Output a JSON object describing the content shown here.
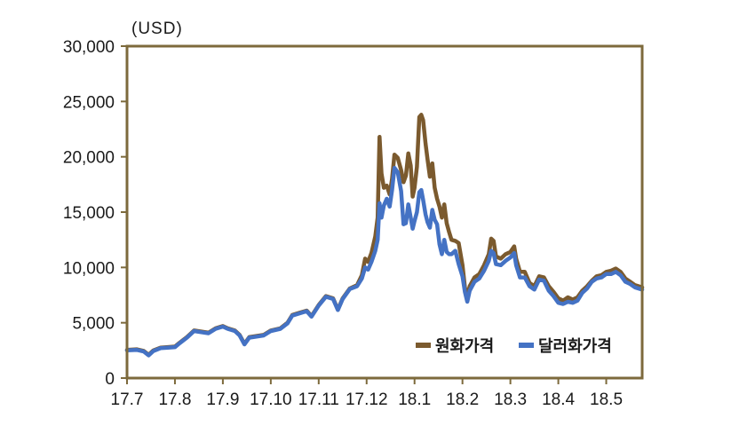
{
  "chart_data": {
    "type": "line",
    "unit_label": "(USD)",
    "ylim": [
      0,
      30000
    ],
    "y_ticks": [
      0,
      5000,
      10000,
      15000,
      20000,
      25000,
      30000
    ],
    "y_tick_labels": [
      "0",
      "5,000",
      "10,000",
      "15,000",
      "20,000",
      "25,000",
      "30,000"
    ],
    "x_tick_labels": [
      "17.7",
      "17.8",
      "17.9",
      "17.10",
      "17.11",
      "17.12",
      "18.1",
      "18.2",
      "18.3",
      "18.4",
      "18.5"
    ],
    "x_range_months": [
      0,
      10.75
    ],
    "grid": false,
    "legend_position": "bottom-right",
    "frame_color": "#7d6a3c",
    "series": [
      {
        "name": "원화가격",
        "color": "#7b5a2e",
        "points": [
          [
            0,
            2550
          ],
          [
            0.2,
            2600
          ],
          [
            0.35,
            2450
          ],
          [
            0.45,
            2100
          ],
          [
            0.55,
            2500
          ],
          [
            0.7,
            2750
          ],
          [
            0.85,
            2800
          ],
          [
            1.0,
            2850
          ],
          [
            1.1,
            3200
          ],
          [
            1.25,
            3700
          ],
          [
            1.4,
            4300
          ],
          [
            1.55,
            4200
          ],
          [
            1.7,
            4100
          ],
          [
            1.85,
            4500
          ],
          [
            2.0,
            4700
          ],
          [
            2.1,
            4500
          ],
          [
            2.25,
            4300
          ],
          [
            2.35,
            3900
          ],
          [
            2.45,
            3100
          ],
          [
            2.55,
            3700
          ],
          [
            2.7,
            3800
          ],
          [
            2.85,
            3900
          ],
          [
            3.0,
            4300
          ],
          [
            3.2,
            4500
          ],
          [
            3.35,
            5000
          ],
          [
            3.45,
            5700
          ],
          [
            3.6,
            5900
          ],
          [
            3.75,
            6100
          ],
          [
            3.85,
            5600
          ],
          [
            4.0,
            6600
          ],
          [
            4.15,
            7400
          ],
          [
            4.3,
            7200
          ],
          [
            4.4,
            6200
          ],
          [
            4.5,
            7200
          ],
          [
            4.65,
            8100
          ],
          [
            4.8,
            8400
          ],
          [
            4.9,
            9300
          ],
          [
            4.97,
            10800
          ],
          [
            5.03,
            10500
          ],
          [
            5.1,
            11300
          ],
          [
            5.18,
            12800
          ],
          [
            5.23,
            14500
          ],
          [
            5.27,
            21800
          ],
          [
            5.31,
            18500
          ],
          [
            5.36,
            17200
          ],
          [
            5.42,
            17400
          ],
          [
            5.48,
            16600
          ],
          [
            5.53,
            18000
          ],
          [
            5.58,
            20200
          ],
          [
            5.65,
            19900
          ],
          [
            5.72,
            18800
          ],
          [
            5.77,
            17700
          ],
          [
            5.82,
            18300
          ],
          [
            5.87,
            20300
          ],
          [
            5.92,
            19200
          ],
          [
            5.96,
            16400
          ],
          [
            6.0,
            17200
          ],
          [
            6.05,
            19100
          ],
          [
            6.1,
            23600
          ],
          [
            6.14,
            23800
          ],
          [
            6.18,
            23300
          ],
          [
            6.23,
            21200
          ],
          [
            6.27,
            19800
          ],
          [
            6.32,
            18200
          ],
          [
            6.37,
            19400
          ],
          [
            6.42,
            17200
          ],
          [
            6.47,
            16200
          ],
          [
            6.52,
            15500
          ],
          [
            6.57,
            14500
          ],
          [
            6.62,
            15700
          ],
          [
            6.67,
            14000
          ],
          [
            6.72,
            13200
          ],
          [
            6.77,
            12500
          ],
          [
            6.85,
            12400
          ],
          [
            6.92,
            12200
          ],
          [
            7.0,
            10200
          ],
          [
            7.05,
            8200
          ],
          [
            7.1,
            7400
          ],
          [
            7.15,
            8300
          ],
          [
            7.25,
            9100
          ],
          [
            7.35,
            9400
          ],
          [
            7.45,
            10200
          ],
          [
            7.55,
            11200
          ],
          [
            7.6,
            12600
          ],
          [
            7.65,
            12400
          ],
          [
            7.7,
            11000
          ],
          [
            7.8,
            10800
          ],
          [
            7.9,
            11200
          ],
          [
            8.0,
            11400
          ],
          [
            8.08,
            11900
          ],
          [
            8.12,
            10800
          ],
          [
            8.2,
            9600
          ],
          [
            8.3,
            9600
          ],
          [
            8.4,
            8600
          ],
          [
            8.5,
            8300
          ],
          [
            8.6,
            9200
          ],
          [
            8.7,
            9100
          ],
          [
            8.8,
            8300
          ],
          [
            8.9,
            7800
          ],
          [
            9.0,
            7200
          ],
          [
            9.1,
            7000
          ],
          [
            9.2,
            7300
          ],
          [
            9.3,
            7100
          ],
          [
            9.4,
            7300
          ],
          [
            9.5,
            7900
          ],
          [
            9.6,
            8300
          ],
          [
            9.7,
            8800
          ],
          [
            9.8,
            9200
          ],
          [
            9.9,
            9300
          ],
          [
            10.0,
            9600
          ],
          [
            10.1,
            9700
          ],
          [
            10.2,
            9900
          ],
          [
            10.3,
            9600
          ],
          [
            10.4,
            9000
          ],
          [
            10.5,
            8700
          ],
          [
            10.6,
            8400
          ],
          [
            10.75,
            8200
          ]
        ]
      },
      {
        "name": "달러화가격",
        "color": "#4472c4",
        "points": [
          [
            0,
            2500
          ],
          [
            0.2,
            2550
          ],
          [
            0.35,
            2400
          ],
          [
            0.45,
            2050
          ],
          [
            0.55,
            2450
          ],
          [
            0.7,
            2700
          ],
          [
            0.85,
            2750
          ],
          [
            1.0,
            2800
          ],
          [
            1.1,
            3150
          ],
          [
            1.25,
            3650
          ],
          [
            1.4,
            4250
          ],
          [
            1.55,
            4150
          ],
          [
            1.7,
            4050
          ],
          [
            1.85,
            4450
          ],
          [
            2.0,
            4650
          ],
          [
            2.1,
            4450
          ],
          [
            2.25,
            4250
          ],
          [
            2.35,
            3850
          ],
          [
            2.45,
            3050
          ],
          [
            2.55,
            3650
          ],
          [
            2.7,
            3750
          ],
          [
            2.85,
            3850
          ],
          [
            3.0,
            4250
          ],
          [
            3.2,
            4450
          ],
          [
            3.35,
            4950
          ],
          [
            3.45,
            5650
          ],
          [
            3.6,
            5850
          ],
          [
            3.75,
            6050
          ],
          [
            3.85,
            5550
          ],
          [
            4.0,
            6550
          ],
          [
            4.15,
            7350
          ],
          [
            4.3,
            7150
          ],
          [
            4.4,
            6150
          ],
          [
            4.5,
            7150
          ],
          [
            4.65,
            8050
          ],
          [
            4.8,
            8300
          ],
          [
            4.9,
            9000
          ],
          [
            4.97,
            10000
          ],
          [
            5.03,
            9800
          ],
          [
            5.1,
            10500
          ],
          [
            5.18,
            11500
          ],
          [
            5.23,
            12500
          ],
          [
            5.27,
            15800
          ],
          [
            5.31,
            14500
          ],
          [
            5.36,
            15600
          ],
          [
            5.42,
            16200
          ],
          [
            5.48,
            15500
          ],
          [
            5.53,
            17000
          ],
          [
            5.58,
            19000
          ],
          [
            5.65,
            18600
          ],
          [
            5.72,
            16900
          ],
          [
            5.77,
            13900
          ],
          [
            5.82,
            14000
          ],
          [
            5.87,
            15700
          ],
          [
            5.92,
            14500
          ],
          [
            5.96,
            13500
          ],
          [
            6.0,
            14200
          ],
          [
            6.05,
            15000
          ],
          [
            6.1,
            16800
          ],
          [
            6.14,
            17000
          ],
          [
            6.18,
            16100
          ],
          [
            6.23,
            14800
          ],
          [
            6.27,
            14100
          ],
          [
            6.32,
            13600
          ],
          [
            6.37,
            15200
          ],
          [
            6.42,
            14300
          ],
          [
            6.47,
            13900
          ],
          [
            6.52,
            12100
          ],
          [
            6.57,
            11200
          ],
          [
            6.62,
            12500
          ],
          [
            6.67,
            11400
          ],
          [
            6.72,
            11200
          ],
          [
            6.77,
            11200
          ],
          [
            6.85,
            11500
          ],
          [
            6.92,
            10300
          ],
          [
            7.0,
            9200
          ],
          [
            7.05,
            7800
          ],
          [
            7.1,
            6900
          ],
          [
            7.15,
            7900
          ],
          [
            7.25,
            8700
          ],
          [
            7.35,
            9000
          ],
          [
            7.45,
            9700
          ],
          [
            7.55,
            10600
          ],
          [
            7.6,
            11500
          ],
          [
            7.65,
            11300
          ],
          [
            7.7,
            10300
          ],
          [
            7.8,
            10200
          ],
          [
            7.9,
            10600
          ],
          [
            8.0,
            10900
          ],
          [
            8.08,
            11300
          ],
          [
            8.12,
            10200
          ],
          [
            8.2,
            9100
          ],
          [
            8.3,
            9100
          ],
          [
            8.4,
            8300
          ],
          [
            8.5,
            8000
          ],
          [
            8.6,
            8900
          ],
          [
            8.7,
            8800
          ],
          [
            8.8,
            7900
          ],
          [
            8.9,
            7400
          ],
          [
            9.0,
            6800
          ],
          [
            9.1,
            6700
          ],
          [
            9.2,
            6900
          ],
          [
            9.3,
            6800
          ],
          [
            9.4,
            7000
          ],
          [
            9.5,
            7700
          ],
          [
            9.6,
            8100
          ],
          [
            9.7,
            8700
          ],
          [
            9.8,
            9000
          ],
          [
            9.9,
            9100
          ],
          [
            10.0,
            9400
          ],
          [
            10.1,
            9400
          ],
          [
            10.2,
            9600
          ],
          [
            10.3,
            9300
          ],
          [
            10.4,
            8700
          ],
          [
            10.5,
            8500
          ],
          [
            10.6,
            8200
          ],
          [
            10.75,
            8000
          ]
        ]
      }
    ]
  }
}
